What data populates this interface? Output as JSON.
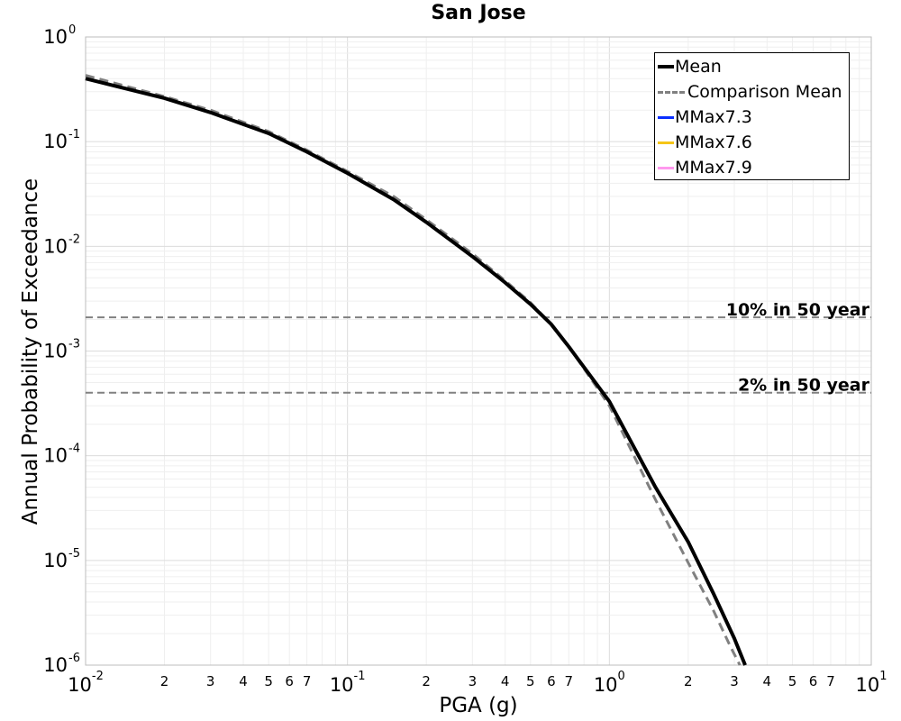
{
  "chart_data": {
    "type": "line",
    "title": "San Jose",
    "xlabel": "PGA (g)",
    "ylabel": "Annual Probability of Exceedance",
    "xscale": "log",
    "yscale": "log",
    "xlim": [
      0.01,
      10
    ],
    "ylim": [
      1e-06,
      1
    ],
    "grid": true,
    "legend_position": "top-right",
    "x_major_ticks": [
      {
        "base": "10",
        "exp": "-2"
      },
      {
        "base": "10",
        "exp": "-1"
      },
      {
        "base": "10",
        "exp": "0"
      },
      {
        "base": "10",
        "exp": "1"
      }
    ],
    "x_minor_tick_labels": [
      "2",
      "3",
      "4",
      "5",
      "6",
      "7"
    ],
    "y_major_ticks": [
      {
        "base": "10",
        "exp": "0"
      },
      {
        "base": "10",
        "exp": "-1"
      },
      {
        "base": "10",
        "exp": "-2"
      },
      {
        "base": "10",
        "exp": "-3"
      },
      {
        "base": "10",
        "exp": "-4"
      },
      {
        "base": "10",
        "exp": "-5"
      },
      {
        "base": "10",
        "exp": "-6"
      }
    ],
    "series": [
      {
        "name": "Mean",
        "color": "#000000",
        "style": "solid",
        "x": [
          0.01,
          0.02,
          0.03,
          0.05,
          0.07,
          0.1,
          0.15,
          0.2,
          0.3,
          0.4,
          0.5,
          0.6,
          0.7,
          0.8,
          1.0,
          1.5,
          2.0,
          2.5,
          3.0,
          3.3
        ],
        "y": [
          0.4,
          0.26,
          0.19,
          0.12,
          0.08,
          0.05,
          0.028,
          0.017,
          0.008,
          0.0045,
          0.0028,
          0.0018,
          0.0011,
          0.0007,
          0.00033,
          5e-05,
          1.5e-05,
          4.8e-06,
          1.8e-06,
          1e-06
        ]
      },
      {
        "name": "Comparison Mean",
        "color": "#808080",
        "style": "dashed",
        "x": [
          0.01,
          0.02,
          0.03,
          0.05,
          0.07,
          0.1,
          0.15,
          0.2,
          0.3,
          0.4,
          0.5,
          0.6,
          0.7,
          0.8,
          1.0,
          1.5,
          2.0,
          2.5,
          2.9,
          3.15
        ],
        "y": [
          0.43,
          0.27,
          0.2,
          0.125,
          0.083,
          0.052,
          0.03,
          0.018,
          0.0085,
          0.0047,
          0.0029,
          0.0018,
          0.0011,
          0.00068,
          0.0003,
          3.8e-05,
          9.5e-06,
          3.3e-06,
          1.5e-06,
          1e-06
        ]
      },
      {
        "name": "MMax7.3",
        "color": "#0a2fff",
        "style": "solid",
        "x": [],
        "y": []
      },
      {
        "name": "MMax7.6",
        "color": "#f5c518",
        "style": "solid",
        "x": [],
        "y": []
      },
      {
        "name": "MMax7.9",
        "color": "#ff99ee",
        "style": "solid",
        "x": [],
        "y": []
      }
    ],
    "reference_lines": [
      {
        "label": "10% in 50 year",
        "y": 0.0021,
        "color": "#808080",
        "style": "dashed"
      },
      {
        "label": "2% in 50 year",
        "y": 0.0004,
        "color": "#808080",
        "style": "dashed"
      }
    ]
  }
}
